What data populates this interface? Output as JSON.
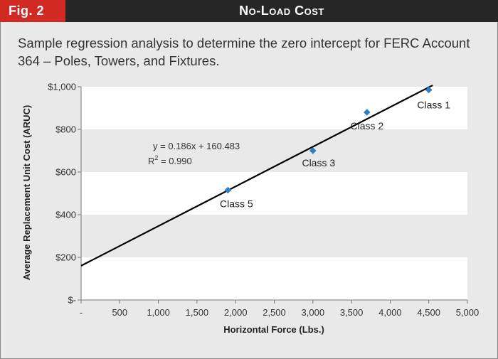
{
  "header": {
    "fig_label": "Fig. 2",
    "title": "No-Load Cost"
  },
  "caption": "Sample regression analysis to determine the zero intercept for FERC Account 364 – Poles, Towers, and Fixtures.",
  "colors": {
    "header_bar": "#262626",
    "fig_label_bg": "#d02a22",
    "panel_bg": "#e9e9e9",
    "plot_band": "#ffffff",
    "marker": "#2f7fc1",
    "trendline": "#000000"
  },
  "chart_data": {
    "type": "scatter",
    "xlabel": "Horizontal Force (Lbs.)",
    "ylabel": "Average Replacement Unit Cost (ARUC)",
    "xlim": [
      0,
      5000
    ],
    "ylim": [
      0,
      1000
    ],
    "x_ticks": [
      0,
      500,
      1000,
      1500,
      2000,
      2500,
      3000,
      3500,
      4000,
      4500,
      5000
    ],
    "x_tick_labels": [
      "-",
      "500",
      "1,000",
      "1,500",
      "2,000",
      "2,500",
      "3,000",
      "3,500",
      "4,000",
      "4,500",
      "5,000"
    ],
    "y_ticks": [
      0,
      200,
      400,
      600,
      800,
      1000
    ],
    "y_tick_labels": [
      "$-",
      "$200",
      "$400",
      "$600",
      "$800",
      "$1,000"
    ],
    "points": [
      {
        "label": "Class 1",
        "x": 4500,
        "y": 985
      },
      {
        "label": "Class 2",
        "x": 3700,
        "y": 880
      },
      {
        "label": "Class 3",
        "x": 3000,
        "y": 700
      },
      {
        "label": "Class 5",
        "x": 1900,
        "y": 515
      }
    ],
    "trendline": {
      "slope": 0.186,
      "intercept": 160.483,
      "x_range": [
        0,
        4550
      ],
      "equation": "y = 0.186x + 160.483",
      "r2_prefix": "R",
      "r2_sup": "2",
      "r2_value": " = 0.990"
    },
    "grid": "alternating horizontal bands"
  }
}
